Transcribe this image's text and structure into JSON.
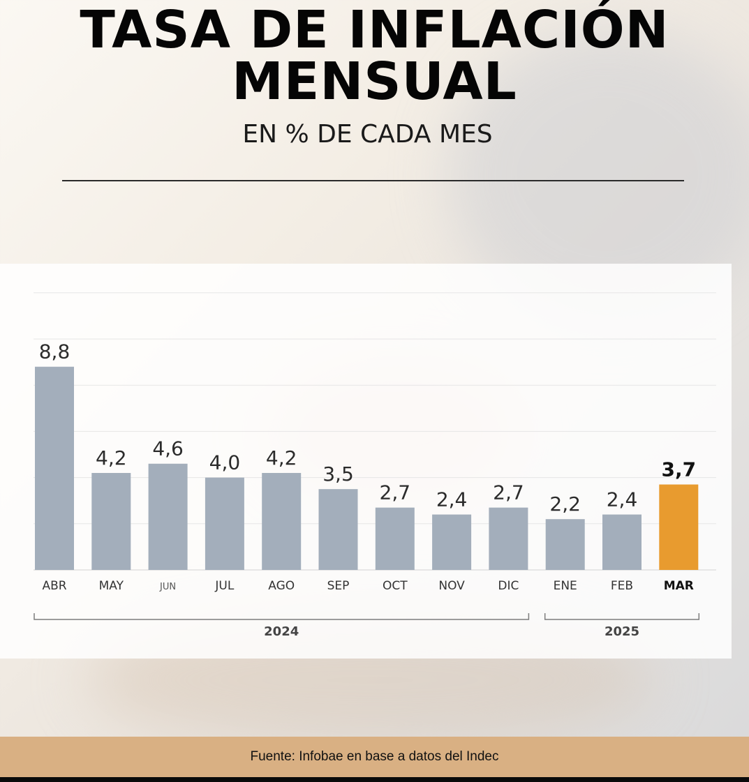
{
  "title_line1": "TASA DE INFLACIÓN",
  "title_line2": "MENSUAL",
  "subtitle": "EN % DE CADA MES",
  "source": "Fuente: Infobae en base a datos del Indec",
  "colors": {
    "bar": "#a3aebb",
    "highlight": "#e89b2f",
    "text": "#2b2b2b"
  },
  "chart_data": {
    "type": "bar",
    "title": "TASA DE INFLACIÓN MENSUAL",
    "subtitle": "EN % DE CADA MES",
    "categories": [
      "ABR",
      "MAY",
      "JUN",
      "JUL",
      "AGO",
      "SEP",
      "OCT",
      "NOV",
      "DIC",
      "ENE",
      "FEB",
      "MAR"
    ],
    "values": [
      8.8,
      4.2,
      4.6,
      4.0,
      4.2,
      3.5,
      2.7,
      2.4,
      2.7,
      2.2,
      2.4,
      3.7
    ],
    "value_labels": [
      "8,8",
      "4,2",
      "4,6",
      "4,0",
      "4,2",
      "3,5",
      "2,7",
      "2,4",
      "2,7",
      "2,2",
      "2,4",
      "3,7"
    ],
    "highlight_index": 11,
    "ylim": [
      0,
      12
    ],
    "grid": true,
    "groups": [
      {
        "label": "2024",
        "from": 0,
        "to": 8
      },
      {
        "label": "2025",
        "from": 9,
        "to": 11
      }
    ]
  }
}
